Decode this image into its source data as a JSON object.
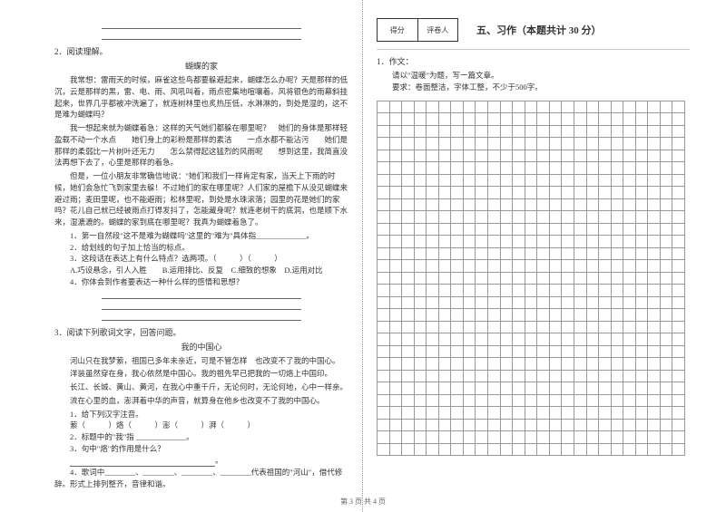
{
  "footer": "第 3 页  共 4 页",
  "left": {
    "q2": {
      "num": "2．阅读理解。",
      "title": "蝴蝶的家",
      "p1": "我常想：雷雨天的时候，麻雀这些鸟都要躲避起来，蝴蝶怎么办呢？天是那样的低沉，云是那样的黑，雷、电、雨、风吼叫着，雨点密集地喧嚷着。风将银色的雨幕斜挂起来，世界几乎都被冲洗遍了，就连树林里也炙热压低，水淋淋的，到处是湿的，这不是难为蝴蝶吗？",
      "p2": "我一想起来就为蝴蝶着急：这样的天气她们都躲在哪里呢？　她们的身体是那样轻盈载不动一个水点　　她们身上的彩粉是那样的素洁　　一点水都不能沾污　　她们是那样的柔弱比一片树叶还无力　　怎么禁得起这猛烈的风雨呢　　想到这里，我简直没法再想下去了，心里是那样的着急。",
      "p3": "但是，一位小朋友非常确信地说：\"她们和我们一样肯定有家，当天上下雨的时候，她们会急忙飞到家里去躲！不过她们的家在哪里呢？人们家的屋檐下从没见蝴蝶来避过雨；麦田里呢，也不能避雨；松林里呢，到处是水珠滚落；园里的花是她们的家吗？花儿自己就已经被雨点打得发抖了，怎能藏身呢？就连老树干的底洞，也是顺下水来，湿漉漉的。蝴蝶的家到底在哪里呢？我真为蝴蝶着急了。",
      "s1": "1．第一自然段\"这不是难为蝴蝶吗\"这里的\"难为\"具体指_____________。",
      "s2": "2．给划线的句子加上恰当的标点。",
      "s3": "3．这段话在表达上有什么特点？选两项。（　　　）（　　　）",
      "s3opt": "A.巧设悬念，引人入胜　　B.运用排比、反复　C.细致的想象　D.运用对比",
      "s4": "4．你体会到作者要表达一种什么样的感情和思想？"
    },
    "q3": {
      "num": "3．阅读下列歌词文字，回答问题。",
      "title": "我的中国心",
      "p1": "河山只在我梦萦，祖国已多年未亲近，可是不管怎样　也改变不了我的中国心。",
      "p2": "洋装虽然穿在身，我心依然是中国心。我的祖先早已把我的一切烙上中国印。",
      "p3": "长江、长城、黄山、黄河，在我心中重千斤，无论何时，无论何地，心中一样亲。",
      "p4": "流在心里的血，澎湃着中华的声音，就算身在他乡也改变不了我的中国心。",
      "s1": "1．给下列汉字注音。",
      "s1a": "萦（　　　）烙（　　　）澎（　　　）湃（　　　）",
      "s2": "2．标题中的\"我\"指 _____________。",
      "s3": "3．句中\"烙\"的作用是什么？",
      "s4": "4．歌词中________、________、________、________代表祖国的\"河山\"，借代修辞。形式上排列整齐，音律和谐。"
    }
  },
  "right": {
    "scoreLabels": {
      "a": "得分",
      "b": "评卷人"
    },
    "sectionTitle": "五、习作（本题共计 30 分）",
    "q1num": "1．作文：",
    "q1line1": "请以\"温暖\"为题，写一篇文章。",
    "q1line2": "要求：卷面整洁，字体工整，不少于500字。",
    "gridCells": 725
  }
}
